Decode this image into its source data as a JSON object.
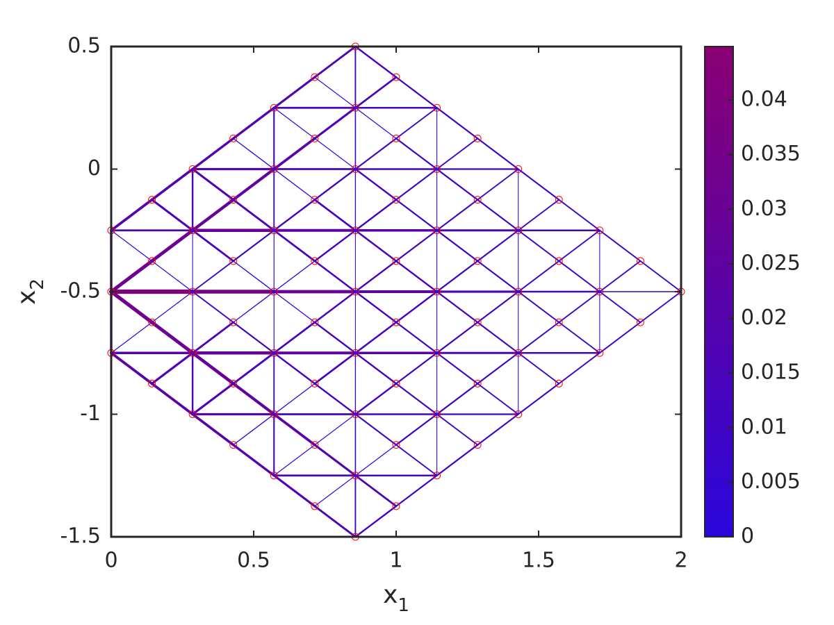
{
  "chart_data": {
    "type": "truss",
    "xlabel": {
      "base": "x",
      "subscript": "1"
    },
    "ylabel": {
      "base": "x",
      "subscript": "2"
    },
    "xlim": [
      0,
      2
    ],
    "ylim": [
      -1.5,
      0.5
    ],
    "xticks": [
      0,
      0.5,
      1,
      1.5,
      2
    ],
    "yticks": [
      -1.5,
      -1,
      -0.5,
      0,
      0.5
    ],
    "clim": [
      0,
      0.0449
    ],
    "cticks": [
      0,
      0.005,
      0.01,
      0.015,
      0.02,
      0.025,
      0.03,
      0.035,
      0.04
    ],
    "colormap": [
      "#2a06dc",
      "#8a0072"
    ],
    "node_color": "#ff0000",
    "nodes": [
      {
        "x": 0,
        "y": [
          -0.25,
          -0.5,
          -0.75
        ]
      },
      {
        "x": 0.1429,
        "y": [
          -0.125,
          -0.375,
          -0.625,
          -0.875
        ]
      },
      {
        "x": 0.2857,
        "y": [
          0,
          -0.25,
          -0.5,
          -0.75,
          -1
        ]
      },
      {
        "x": 0.4286,
        "y": [
          0.125,
          -0.125,
          -0.375,
          -0.625,
          -0.875,
          -1.125
        ]
      },
      {
        "x": 0.5714,
        "y": [
          0.25,
          0,
          -0.25,
          -0.5,
          -0.75,
          -1,
          -1.25
        ]
      },
      {
        "x": 0.7143,
        "y": [
          0.375,
          0.125,
          -0.125,
          -0.375,
          -0.625,
          -0.875,
          -1.125,
          -1.375
        ]
      },
      {
        "x": 0.8571,
        "y": [
          0.5,
          0.25,
          0,
          -0.25,
          -0.5,
          -0.75,
          -1,
          -1.25,
          -1.5
        ]
      },
      {
        "x": 1,
        "y": [
          0.375,
          0.125,
          -0.125,
          -0.375,
          -0.625,
          -0.875,
          -1.125,
          -1.375
        ]
      },
      {
        "x": 1.1429,
        "y": [
          0.25,
          0,
          -0.25,
          -0.5,
          -0.75,
          -1,
          -1.25
        ]
      },
      {
        "x": 1.2857,
        "y": [
          0.125,
          -0.125,
          -0.375,
          -0.625,
          -0.875,
          -1.125
        ]
      },
      {
        "x": 1.4286,
        "y": [
          0,
          -0.25,
          -0.5,
          -0.75,
          -1
        ]
      },
      {
        "x": 1.5714,
        "y": [
          -0.125,
          -0.375,
          -0.625,
          -0.875
        ]
      },
      {
        "x": 1.7143,
        "y": [
          -0.25,
          -0.5,
          -0.75
        ]
      },
      {
        "x": 1.8571,
        "y": [
          -0.375,
          -0.625
        ]
      },
      {
        "x": 2,
        "y": [
          -0.5
        ]
      }
    ],
    "members": [
      {
        "from": [
          0.5714,
          0.25
        ],
        "to": [
          1.1429,
          0.25
        ],
        "values": [
          0.015,
          0.012
        ]
      },
      {
        "from": [
          0.2857,
          0
        ],
        "to": [
          1.4286,
          0
        ],
        "values": [
          0.018,
          0.015,
          0.012,
          0.01
        ]
      },
      {
        "from": [
          0,
          -0.25
        ],
        "to": [
          1.7143,
          -0.25
        ],
        "values": [
          0.015,
          0.028,
          0.024,
          0.02,
          0.016,
          0.012
        ]
      },
      {
        "from": [
          0,
          -0.5
        ],
        "to": [
          2,
          -0.5
        ],
        "values": [
          0.04,
          0.035,
          0.03,
          0.024,
          0.018,
          0.012,
          0.006
        ]
      },
      {
        "from": [
          0,
          -0.75
        ],
        "to": [
          1.7143,
          -0.75
        ],
        "values": [
          0.02,
          0.028,
          0.024,
          0.02,
          0.016,
          0.012
        ]
      },
      {
        "from": [
          0.2857,
          -1
        ],
        "to": [
          1.4286,
          -1
        ],
        "values": [
          0.018,
          0.015,
          0.012,
          0.01
        ]
      },
      {
        "from": [
          0.5714,
          -1.25
        ],
        "to": [
          1.1429,
          -1.25
        ],
        "values": [
          0.015,
          0.012
        ]
      },
      {
        "from": [
          0,
          -0.25
        ],
        "to": [
          0,
          -0.75
        ],
        "values": [
          0.02,
          0.02
        ]
      },
      {
        "from": [
          0.2857,
          0
        ],
        "to": [
          0.2857,
          -1
        ],
        "values": [
          0.012,
          0.002,
          0.002,
          0.012
        ]
      },
      {
        "from": [
          0.5714,
          0.25
        ],
        "to": [
          0.5714,
          -1.25
        ],
        "values": [
          0.01,
          0.008,
          0.003,
          0.003,
          0.008,
          0.01
        ]
      },
      {
        "from": [
          0.8571,
          0.5
        ],
        "to": [
          0.8571,
          -1.5
        ],
        "values": [
          0.008,
          0.006,
          0.004,
          0.002,
          0.002,
          0.004,
          0.006,
          0.008
        ]
      },
      {
        "from": [
          1.1429,
          0.25
        ],
        "to": [
          1.1429,
          -1.25
        ],
        "values": [
          0.002,
          0.002,
          0.002,
          0.002,
          0.002,
          0.002
        ]
      },
      {
        "from": [
          1.4286,
          0
        ],
        "to": [
          1.4286,
          -1
        ],
        "values": [
          0.002,
          0.002,
          0.002,
          0.002
        ]
      },
      {
        "from": [
          1.7143,
          -0.25
        ],
        "to": [
          1.7143,
          -0.75
        ],
        "values": [
          0.002,
          0.002
        ]
      },
      {
        "from": [
          0,
          -0.25
        ],
        "to": [
          0.8571,
          0.5
        ],
        "values": [
          0.022,
          0.021,
          0.02,
          0.019,
          0.018,
          0.016
        ]
      },
      {
        "from": [
          0,
          -0.5
        ],
        "to": [
          1,
          0.375
        ],
        "values": [
          0.032,
          0.03,
          0.027,
          0.025,
          0.022,
          0.018,
          0.014
        ]
      },
      {
        "from": [
          0,
          -0.75
        ],
        "to": [
          1.1429,
          0.25
        ],
        "values": [
          0.003,
          0.003,
          0.008,
          0.01,
          0.012,
          0.012,
          0.01,
          0.008
        ]
      },
      {
        "from": [
          0.1429,
          -0.875
        ],
        "to": [
          1.2857,
          0.125
        ],
        "values": [
          0.018,
          0.016,
          0.004,
          0.004,
          0.012,
          0.012,
          0.01,
          0.008
        ]
      },
      {
        "from": [
          0.2857,
          -1
        ],
        "to": [
          1.4286,
          0
        ],
        "values": [
          0.018,
          0.016,
          0.014,
          0.013,
          0.012,
          0.011,
          0.01,
          0.008
        ]
      },
      {
        "from": [
          0.4286,
          -1.125
        ],
        "to": [
          1.5714,
          -0.125
        ],
        "values": [
          0.004,
          0.004,
          0.014,
          0.013,
          0.012,
          0.011,
          0.01,
          0.008
        ]
      },
      {
        "from": [
          0.5714,
          -1.25
        ],
        "to": [
          1.7143,
          -0.25
        ],
        "values": [
          0.003,
          0.003,
          0.012,
          0.011,
          0.011,
          0.01,
          0.009,
          0.008
        ]
      },
      {
        "from": [
          0.7143,
          -1.375
        ],
        "to": [
          1.8571,
          -0.375
        ],
        "values": [
          0.003,
          0.003,
          0.011,
          0.011,
          0.01,
          0.009,
          0.009,
          0.008
        ]
      },
      {
        "from": [
          0.8571,
          -1.5
        ],
        "to": [
          2,
          -0.5
        ],
        "values": [
          0.012,
          0.011,
          0.011,
          0.01,
          0.01,
          0.009,
          0.009,
          0.008
        ]
      },
      {
        "from": [
          0,
          -0.75
        ],
        "to": [
          0.8571,
          -1.5
        ],
        "values": [
          0.023,
          0.022,
          0.021,
          0.02,
          0.018,
          0.016
        ]
      },
      {
        "from": [
          0,
          -0.5
        ],
        "to": [
          1,
          -1.375
        ],
        "values": [
          0.033,
          0.031,
          0.028,
          0.025,
          0.022,
          0.018,
          0.014
        ]
      },
      {
        "from": [
          0,
          -0.25
        ],
        "to": [
          1.1429,
          -1.25
        ],
        "values": [
          0.003,
          0.003,
          0.009,
          0.011,
          0.012,
          0.012,
          0.01,
          0.008
        ]
      },
      {
        "from": [
          0.1429,
          -0.125
        ],
        "to": [
          1.2857,
          -1.125
        ],
        "values": [
          0.017,
          0.016,
          0.004,
          0.004,
          0.012,
          0.012,
          0.01,
          0.008
        ]
      },
      {
        "from": [
          0.2857,
          0
        ],
        "to": [
          1.4286,
          -1
        ],
        "values": [
          0.017,
          0.016,
          0.014,
          0.013,
          0.012,
          0.011,
          0.01,
          0.008
        ]
      },
      {
        "from": [
          0.4286,
          0.125
        ],
        "to": [
          1.5714,
          -0.875
        ],
        "values": [
          0.004,
          0.004,
          0.014,
          0.013,
          0.012,
          0.011,
          0.01,
          0.008
        ]
      },
      {
        "from": [
          0.5714,
          0.25
        ],
        "to": [
          1.7143,
          -0.75
        ],
        "values": [
          0.003,
          0.003,
          0.012,
          0.011,
          0.011,
          0.01,
          0.009,
          0.008
        ]
      },
      {
        "from": [
          0.7143,
          0.375
        ],
        "to": [
          1.8571,
          -0.625
        ],
        "values": [
          0.003,
          0.003,
          0.011,
          0.011,
          0.01,
          0.009,
          0.009,
          0.008
        ]
      },
      {
        "from": [
          0.8571,
          0.5
        ],
        "to": [
          2,
          -0.5
        ],
        "values": [
          0.012,
          0.011,
          0.011,
          0.01,
          0.01,
          0.009,
          0.009,
          0.008
        ]
      }
    ]
  }
}
